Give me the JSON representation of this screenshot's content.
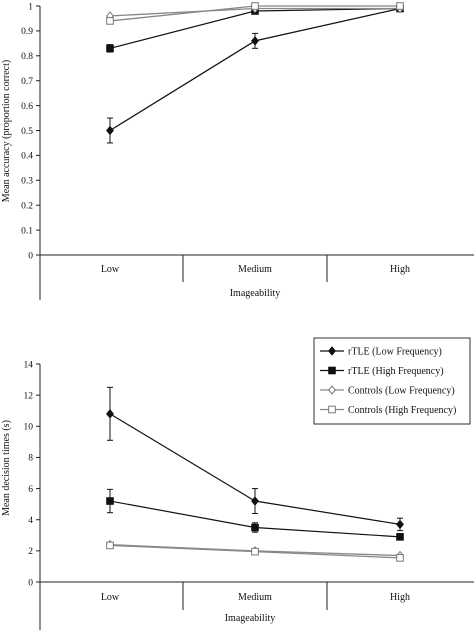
{
  "chart_data": [
    {
      "type": "line",
      "title": "",
      "xlabel": "Imageability",
      "ylabel": "Mean accuracy (proportion correct)",
      "categories": [
        "Low",
        "Medium",
        "High"
      ],
      "ylim": [
        0,
        1
      ],
      "yticks": [
        0,
        0.1,
        0.2,
        0.3,
        0.4,
        0.5,
        0.6,
        0.7,
        0.8,
        0.9,
        1
      ],
      "ytick_labels": [
        "0",
        "0.1",
        "0.2",
        "0.3",
        "0.4",
        "0.5",
        "0.6",
        "0.7",
        "0.8",
        "0.9",
        "1"
      ],
      "grid": false,
      "series": [
        {
          "name": "rTLE (Low Frequency)",
          "marker": "diamond-filled",
          "values": [
            0.5,
            0.86,
            0.99
          ],
          "errors": [
            0.05,
            0.03,
            0.005
          ]
        },
        {
          "name": "rTLE (High Frequency)",
          "marker": "square-filled",
          "values": [
            0.83,
            0.98,
            0.99
          ],
          "errors": [
            0.015,
            0.005,
            0.005
          ]
        },
        {
          "name": "Controls (Low Frequency)",
          "marker": "diamond-open",
          "values": [
            0.96,
            0.99,
            0.99
          ],
          "errors": [
            0,
            0,
            0
          ]
        },
        {
          "name": "Controls (High Frequency)",
          "marker": "square-open",
          "values": [
            0.94,
            1.0,
            1.0
          ],
          "errors": [
            0,
            0,
            0
          ]
        }
      ]
    },
    {
      "type": "line",
      "title": "",
      "xlabel": "Imageability",
      "ylabel": "Mean decision times (s)",
      "categories": [
        "Low",
        "Medium",
        "High"
      ],
      "ylim": [
        0,
        14
      ],
      "yticks": [
        0,
        2,
        4,
        6,
        8,
        10,
        12,
        14
      ],
      "ytick_labels": [
        "0",
        "2",
        "4",
        "6",
        "8",
        "10",
        "12",
        "14"
      ],
      "grid": false,
      "legend_position": "top-right",
      "series": [
        {
          "name": "rTLE (Low Frequency)",
          "marker": "diamond-filled",
          "values": [
            10.8,
            5.2,
            3.7
          ],
          "errors": [
            1.7,
            0.8,
            0.4
          ]
        },
        {
          "name": "rTLE (High Frequency)",
          "marker": "square-filled",
          "values": [
            5.2,
            3.5,
            2.9
          ],
          "errors": [
            0.75,
            0.3,
            0.2
          ]
        },
        {
          "name": "Controls (Low Frequency)",
          "marker": "diamond-open",
          "values": [
            2.4,
            2.0,
            1.7
          ],
          "errors": [
            0,
            0,
            0
          ]
        },
        {
          "name": "Controls (High Frequency)",
          "marker": "square-open",
          "values": [
            2.35,
            1.95,
            1.55
          ],
          "errors": [
            0,
            0,
            0
          ]
        }
      ]
    }
  ]
}
